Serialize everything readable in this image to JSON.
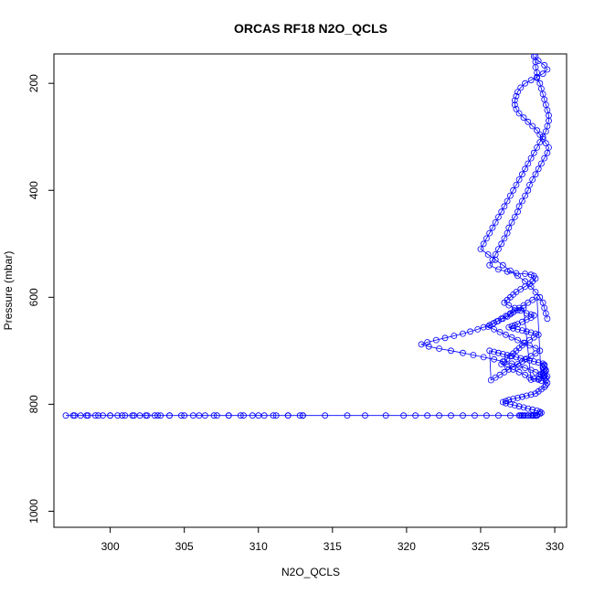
{
  "chart_data": {
    "type": "scatter",
    "title": "ORCAS RF18 N2O_QCLS",
    "xlabel": "N2O_QCLS",
    "ylabel": "Pressure (mbar)",
    "xlim": [
      296.2,
      330.8
    ],
    "ylim": [
      1030,
      145
    ],
    "y_reversed": true,
    "x_ticks": [
      300,
      305,
      310,
      315,
      320,
      325,
      330
    ],
    "y_ticks": [
      200,
      400,
      600,
      800,
      1000
    ],
    "grid": false,
    "legend": "none",
    "marker": "open-circle",
    "connected": true,
    "color": "#0000ff",
    "series": [
      {
        "name": "",
        "x": [
          328.6,
          328.9,
          329.3,
          329.5,
          329.2,
          328.8,
          328.4,
          328.0,
          327.7,
          327.5,
          327.4,
          327.3,
          327.3,
          327.4,
          327.6,
          327.9,
          328.2,
          328.5,
          328.8,
          329.0,
          329.2,
          329.4,
          329.6,
          329.5,
          329.3,
          329.1,
          328.9,
          328.7,
          328.5,
          328.3,
          328.2,
          328.0,
          327.8,
          327.6,
          327.5,
          327.3,
          327.1,
          326.9,
          326.8,
          326.6,
          326.4,
          326.2,
          326.0,
          325.8,
          325.6,
          326.2,
          326.8,
          327.4,
          328.0,
          328.4,
          328.6,
          328.7,
          328.5,
          328.3,
          328.0,
          327.7,
          327.4,
          327.2,
          327.0,
          326.8,
          326.6,
          326.9,
          327.3,
          327.7,
          328.1,
          328.4,
          328.6,
          328.4,
          328.1,
          327.8,
          327.5,
          327.3,
          327.1,
          326.9,
          327.2,
          327.5,
          327.8,
          328.1,
          328.4,
          328.7,
          328.9,
          328.6,
          328.3,
          328.0,
          327.8,
          327.6,
          327.4,
          327.2,
          327.0,
          326.8,
          326.6,
          326.4,
          326.8,
          327.2,
          327.6,
          328.0,
          328.3,
          328.6,
          328.9,
          329.1,
          328.8,
          328.5,
          328.2,
          327.9,
          327.6,
          327.3,
          327.0,
          326.7,
          326.4,
          326.1,
          325.8,
          325.5,
          325.9,
          326.3,
          326.7,
          327.1,
          327.5,
          327.9,
          328.3,
          328.7,
          329.0,
          328.7,
          328.4,
          328.1,
          327.8,
          327.5,
          327.2,
          326.9,
          326.6,
          326.3,
          326.0,
          325.7,
          325.6,
          325.9,
          326.2,
          326.5,
          326.8,
          327.1,
          327.4,
          327.7,
          328.0,
          328.3,
          328.6,
          328.9,
          329.2,
          329.3,
          329.3,
          329.2,
          329.2,
          329.3,
          329.4,
          329.4,
          329.3,
          329.2,
          329.1,
          329.3,
          329.5,
          329.4,
          328.9,
          328.4,
          327.9,
          327.5,
          327.2,
          327.0,
          326.8,
          326.5,
          326.2,
          325.9,
          325.6,
          325.2,
          324.8,
          324.3,
          323.8,
          323.2,
          322.6,
          322.0,
          321.4,
          321.0,
          321.5,
          322.2,
          323.0,
          323.8,
          324.5,
          325.2,
          325.9,
          326.5,
          327.1,
          327.6,
          328.0,
          328.4,
          328.7,
          329.0,
          329.2,
          329.3,
          329.4,
          329.5,
          329.4,
          329.3,
          329.1,
          328.9,
          328.7,
          328.4,
          328.1,
          327.8,
          327.5,
          327.2,
          326.9,
          326.7,
          326.5,
          326.7,
          327.0,
          327.3,
          327.6,
          327.9,
          328.2,
          328.5,
          328.8,
          329.0,
          329.1,
          329.0,
          328.8,
          328.5,
          328.2,
          327.9,
          327.7,
          327.6,
          327.8,
          328.0,
          328.2,
          328.4,
          328.6,
          328.8,
          328.7,
          328.6,
          327.8,
          327.0,
          326.2,
          325.4,
          324.6,
          323.8,
          323.0,
          322.2,
          321.4,
          320.6,
          319.8,
          318.6,
          317.2,
          316.0,
          314.5,
          313.0,
          312.0,
          311.0,
          310.0,
          309.0,
          308.0,
          307.0,
          306.0,
          305.0,
          304.0,
          303.4,
          303.0,
          302.5,
          302.0,
          301.5,
          301.0,
          300.5,
          300.0,
          299.5,
          299.0,
          298.5,
          298.0,
          297.5,
          297.0,
          297.6,
          298.4,
          299.2,
          300.0,
          300.8,
          301.6,
          302.4,
          303.2,
          304.0,
          304.8,
          305.6,
          306.4,
          307.2,
          308.0,
          308.8,
          309.6,
          310.4,
          311.2,
          312.0,
          312.8,
          313.0
        ],
        "y": [
          150,
          158,
          166,
          174,
          182,
          188,
          194,
          200,
          208,
          216,
          224,
          232,
          240,
          248,
          256,
          264,
          272,
          280,
          288,
          296,
          304,
          312,
          320,
          330,
          340,
          350,
          360,
          370,
          380,
          390,
          400,
          410,
          420,
          430,
          440,
          450,
          460,
          470,
          480,
          490,
          500,
          510,
          520,
          530,
          540,
          548,
          552,
          555,
          556,
          558,
          560,
          565,
          570,
          575,
          580,
          585,
          590,
          595,
          600,
          605,
          610,
          615,
          620,
          625,
          630,
          632,
          634,
          638,
          642,
          646,
          650,
          652,
          654,
          656,
          658,
          660,
          662,
          664,
          666,
          668,
          670,
          675,
          680,
          685,
          690,
          695,
          700,
          705,
          710,
          715,
          720,
          725,
          730,
          735,
          740,
          745,
          750,
          752,
          754,
          756,
          600,
          605,
          610,
          615,
          620,
          625,
          630,
          635,
          640,
          645,
          650,
          655,
          660,
          665,
          670,
          675,
          680,
          685,
          690,
          695,
          700,
          705,
          710,
          715,
          720,
          725,
          730,
          735,
          740,
          745,
          750,
          755,
          700,
          702,
          704,
          706,
          708,
          710,
          712,
          714,
          716,
          718,
          720,
          722,
          724,
          726,
          728,
          730,
          732,
          734,
          736,
          738,
          740,
          742,
          744,
          746,
          748,
          750,
          752,
          754,
          620,
          624,
          628,
          632,
          636,
          640,
          644,
          648,
          652,
          656,
          660,
          664,
          668,
          672,
          676,
          680,
          684,
          688,
          692,
          696,
          700,
          704,
          708,
          712,
          716,
          720,
          724,
          728,
          732,
          736,
          740,
          744,
          748,
          752,
          756,
          760,
          764,
          768,
          772,
          776,
          780,
          782,
          784,
          786,
          788,
          790,
          792,
          794,
          796,
          798,
          800,
          802,
          804,
          806,
          808,
          810,
          812,
          814,
          816,
          818,
          820,
          821,
          821,
          821,
          821,
          821,
          821,
          821,
          821,
          821,
          821,
          821,
          821,
          821,
          821,
          821,
          821,
          821,
          821,
          821,
          821,
          821,
          821,
          821,
          821,
          821,
          821,
          821,
          821,
          821,
          821,
          821,
          821,
          821,
          821,
          821,
          821,
          821,
          821,
          821,
          821,
          821,
          821,
          821,
          821,
          821,
          821,
          821,
          821,
          821,
          821,
          821,
          821,
          821,
          821,
          821,
          821,
          821,
          821,
          821,
          821,
          821,
          821,
          821,
          821,
          821,
          821,
          821,
          821,
          821,
          821,
          821,
          821,
          821
        ]
      },
      {
        "name": "",
        "x": [
          328.7,
          328.7,
          328.7,
          328.8,
          328.8,
          329.0,
          329.1,
          329.2,
          329.3,
          329.4,
          329.5,
          329.6,
          329.6,
          329.5,
          329.4,
          329.2,
          329.0,
          328.8,
          328.6,
          328.4,
          328.2,
          328.0,
          327.8,
          327.6,
          327.4,
          327.2,
          327.0,
          326.8,
          326.6,
          326.4,
          326.2,
          326.0,
          325.8,
          325.6,
          325.4,
          325.2,
          325.0,
          325.5,
          326.0,
          326.5,
          327.0,
          327.5,
          328.0,
          328.4,
          328.7,
          329.0,
          329.2,
          329.3,
          329.4,
          329.5
        ],
        "y": [
          150,
          160,
          170,
          180,
          190,
          200,
          210,
          220,
          230,
          240,
          250,
          260,
          270,
          280,
          290,
          300,
          310,
          320,
          330,
          340,
          350,
          360,
          370,
          380,
          390,
          400,
          410,
          420,
          430,
          440,
          450,
          460,
          470,
          480,
          490,
          500,
          510,
          520,
          530,
          540,
          550,
          560,
          570,
          580,
          590,
          600,
          610,
          620,
          630,
          640
        ]
      }
    ]
  }
}
